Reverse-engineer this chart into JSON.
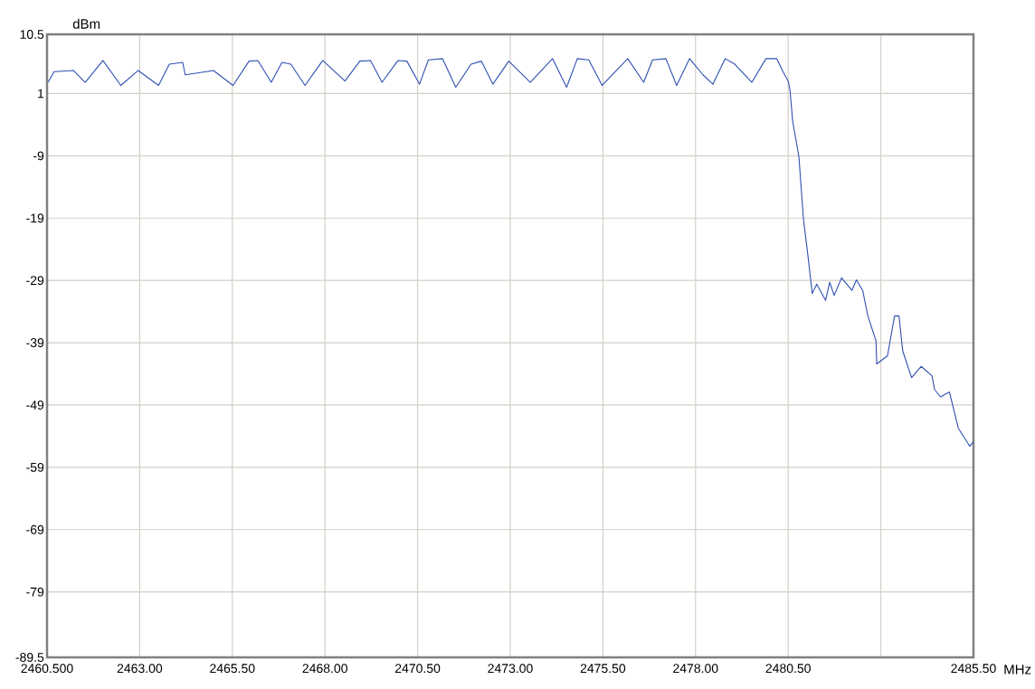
{
  "chart_data": {
    "type": "line",
    "xlabel": "MHz",
    "ylabel": "dBm",
    "xlim": [
      2460.5,
      2485.5
    ],
    "ylim": [
      -89.5,
      10.5
    ],
    "xticks": [
      {
        "value": 2460.5,
        "label": "2460.500"
      },
      {
        "value": 2463,
        "label": "2463.00"
      },
      {
        "value": 2465.5,
        "label": "2465.50"
      },
      {
        "value": 2468,
        "label": "2468.00"
      },
      {
        "value": 2470.5,
        "label": "2470.50"
      },
      {
        "value": 2473,
        "label": "2473.00"
      },
      {
        "value": 2475.5,
        "label": "2475.50"
      },
      {
        "value": 2478,
        "label": "2478.00"
      },
      {
        "value": 2480.5,
        "label": "2480.50"
      },
      {
        "value": 2483,
        "label": null
      },
      {
        "value": 2485.5,
        "label": "2485.50"
      }
    ],
    "yticks": [
      10.5,
      1,
      -9,
      -19,
      -29,
      -39,
      -49,
      -59,
      -69,
      -79,
      -89.5
    ],
    "grid": true,
    "line_style": "solid",
    "marker": "none",
    "series": [
      {
        "color": "#2f4fb0",
        "x": [
          2460.53,
          2460.69,
          2461.21,
          2461.53,
          2462.01,
          2462.49,
          2462.96,
          2463.51,
          2463.8,
          2464.16,
          2464.23,
          2464.99,
          2465.52,
          2465.95,
          2466.19,
          2466.55,
          2466.84,
          2467.08,
          2467.46,
          2467.94,
          2468.54,
          2468.94,
          2469.23,
          2469.54,
          2469.97,
          2470.21,
          2470.55,
          2470.79,
          2471.17,
          2471.53,
          2471.94,
          2472.22,
          2472.53,
          2472.96,
          2473.54,
          2474.14,
          2474.52,
          2474.81,
          2475.12,
          2475.48,
          2476.17,
          2476.6,
          2476.84,
          2477.2,
          2477.49,
          2477.84,
          2478.2,
          2478.47,
          2478.8,
          2479.06,
          2479.52,
          2479.9,
          2480.19,
          2480.36,
          2480.5,
          2480.55,
          2480.62,
          2480.79,
          2480.91,
          2481.03,
          2481.15,
          2481.27,
          2481.51,
          2481.62,
          2481.74,
          2481.94,
          2482.22,
          2482.34,
          2482.51,
          2482.65,
          2482.87,
          2482.89,
          2483.18,
          2483.37,
          2483.49,
          2483.59,
          2483.83,
          2484.09,
          2484.38,
          2484.45,
          2484.61,
          2484.85,
          2485.09,
          2485.4,
          2485.5
        ],
        "values": [
          2.8,
          4.5,
          4.7,
          2.8,
          6.3,
          2.3,
          4.7,
          2.3,
          5.7,
          6.0,
          4.0,
          4.7,
          2.3,
          6.2,
          6.3,
          2.8,
          6.0,
          5.7,
          2.3,
          6.3,
          3.0,
          6.2,
          6.3,
          2.8,
          6.3,
          6.2,
          2.5,
          6.4,
          6.6,
          2.0,
          5.7,
          6.2,
          2.5,
          6.2,
          2.8,
          6.6,
          2.0,
          6.6,
          6.4,
          2.3,
          6.6,
          2.8,
          6.4,
          6.6,
          2.3,
          6.6,
          4.0,
          2.5,
          6.6,
          5.7,
          2.8,
          6.6,
          6.6,
          4.5,
          3.0,
          1.5,
          -3.4,
          -9.2,
          -19,
          -24.9,
          -31.1,
          -29.6,
          -32.2,
          -29.3,
          -31.4,
          -28.6,
          -30.6,
          -28.9,
          -30.6,
          -34.7,
          -38.7,
          -42.4,
          -41.1,
          -34.7,
          -34.7,
          -40.3,
          -44.6,
          -42.8,
          -44.3,
          -46.5,
          -47.7,
          -46.9,
          -52.7,
          -55.6,
          -54.9
        ]
      }
    ]
  }
}
